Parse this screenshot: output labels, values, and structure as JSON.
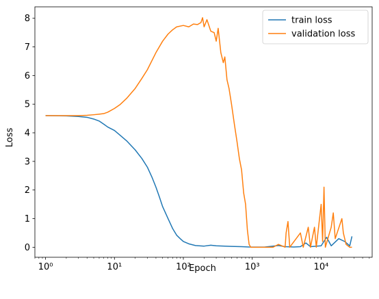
{
  "chart_data": {
    "type": "line",
    "title": "",
    "xlabel": "Epoch",
    "ylabel": "Loss",
    "xscale": "log",
    "xlim": [
      0.7,
      55000
    ],
    "ylim": [
      -0.35,
      8.4
    ],
    "grid": false,
    "legend_placement": "top-right",
    "x_ticks": [
      {
        "value": 1,
        "label": "10⁰"
      },
      {
        "value": 10,
        "label": "10¹"
      },
      {
        "value": 100,
        "label": "10²"
      },
      {
        "value": 1000,
        "label": "10³"
      },
      {
        "value": 10000,
        "label": "10⁴"
      }
    ],
    "y_ticks": [
      0,
      1,
      2,
      3,
      4,
      5,
      6,
      7,
      8
    ],
    "series": [
      {
        "name": "train loss",
        "color": "#1f77b4",
        "points": [
          [
            1,
            4.6
          ],
          [
            2,
            4.59
          ],
          [
            3,
            4.57
          ],
          [
            4,
            4.54
          ],
          [
            5,
            4.48
          ],
          [
            6,
            4.41
          ],
          [
            7,
            4.3
          ],
          [
            8,
            4.2
          ],
          [
            10,
            4.08
          ],
          [
            12,
            3.92
          ],
          [
            15,
            3.72
          ],
          [
            20,
            3.4
          ],
          [
            25,
            3.1
          ],
          [
            30,
            2.8
          ],
          [
            35,
            2.45
          ],
          [
            40,
            2.1
          ],
          [
            45,
            1.75
          ],
          [
            50,
            1.42
          ],
          [
            60,
            1.0
          ],
          [
            70,
            0.65
          ],
          [
            80,
            0.42
          ],
          [
            90,
            0.3
          ],
          [
            100,
            0.2
          ],
          [
            120,
            0.12
          ],
          [
            150,
            0.06
          ],
          [
            200,
            0.04
          ],
          [
            250,
            0.07
          ],
          [
            300,
            0.05
          ],
          [
            400,
            0.04
          ],
          [
            500,
            0.03
          ],
          [
            700,
            0.02
          ],
          [
            900,
            0.01
          ],
          [
            1500,
            0.005
          ],
          [
            2400,
            0.06
          ],
          [
            3000,
            0.02
          ],
          [
            4000,
            0.01
          ],
          [
            5000,
            0.02
          ],
          [
            6000,
            0.15
          ],
          [
            7000,
            0.02
          ],
          [
            10000,
            0.05
          ],
          [
            12000,
            0.35
          ],
          [
            14000,
            0.05
          ],
          [
            18000,
            0.3
          ],
          [
            22000,
            0.2
          ],
          [
            26000,
            0.05
          ],
          [
            28000,
            0.38
          ]
        ]
      },
      {
        "name": "validation loss",
        "color": "#ff7f0e",
        "points": [
          [
            1,
            4.6
          ],
          [
            2,
            4.6
          ],
          [
            3,
            4.6
          ],
          [
            4,
            4.61
          ],
          [
            5,
            4.63
          ],
          [
            6,
            4.65
          ],
          [
            7,
            4.67
          ],
          [
            8,
            4.72
          ],
          [
            10,
            4.85
          ],
          [
            12,
            4.98
          ],
          [
            15,
            5.2
          ],
          [
            20,
            5.55
          ],
          [
            25,
            5.9
          ],
          [
            30,
            6.2
          ],
          [
            40,
            6.8
          ],
          [
            50,
            7.2
          ],
          [
            60,
            7.45
          ],
          [
            70,
            7.6
          ],
          [
            80,
            7.7
          ],
          [
            100,
            7.75
          ],
          [
            120,
            7.7
          ],
          [
            140,
            7.8
          ],
          [
            160,
            7.78
          ],
          [
            180,
            7.85
          ],
          [
            190,
            8.02
          ],
          [
            200,
            7.7
          ],
          [
            220,
            7.95
          ],
          [
            250,
            7.55
          ],
          [
            280,
            7.5
          ],
          [
            300,
            7.2
          ],
          [
            320,
            7.65
          ],
          [
            350,
            6.8
          ],
          [
            380,
            6.45
          ],
          [
            400,
            6.65
          ],
          [
            430,
            5.85
          ],
          [
            460,
            5.55
          ],
          [
            500,
            5.0
          ],
          [
            550,
            4.3
          ],
          [
            600,
            3.7
          ],
          [
            650,
            3.1
          ],
          [
            700,
            2.7
          ],
          [
            750,
            1.9
          ],
          [
            800,
            1.5
          ],
          [
            850,
            0.6
          ],
          [
            900,
            0.1
          ],
          [
            950,
            0.0
          ],
          [
            2000,
            0.0
          ],
          [
            2400,
            0.1
          ],
          [
            3000,
            0.0
          ],
          [
            3100,
            0.5
          ],
          [
            3300,
            0.9
          ],
          [
            3500,
            0.0
          ],
          [
            5000,
            0.5
          ],
          [
            5500,
            0.0
          ],
          [
            6500,
            0.7
          ],
          [
            7000,
            0.0
          ],
          [
            8000,
            0.7
          ],
          [
            8500,
            0.0
          ],
          [
            10000,
            1.5
          ],
          [
            10500,
            0.2
          ],
          [
            11000,
            2.1
          ],
          [
            11500,
            0.0
          ],
          [
            14000,
            0.7
          ],
          [
            15000,
            1.2
          ],
          [
            16000,
            0.3
          ],
          [
            20000,
            1.0
          ],
          [
            21000,
            0.5
          ],
          [
            23000,
            0.1
          ],
          [
            26000,
            0.0
          ],
          [
            28000,
            0.0
          ]
        ]
      }
    ]
  }
}
